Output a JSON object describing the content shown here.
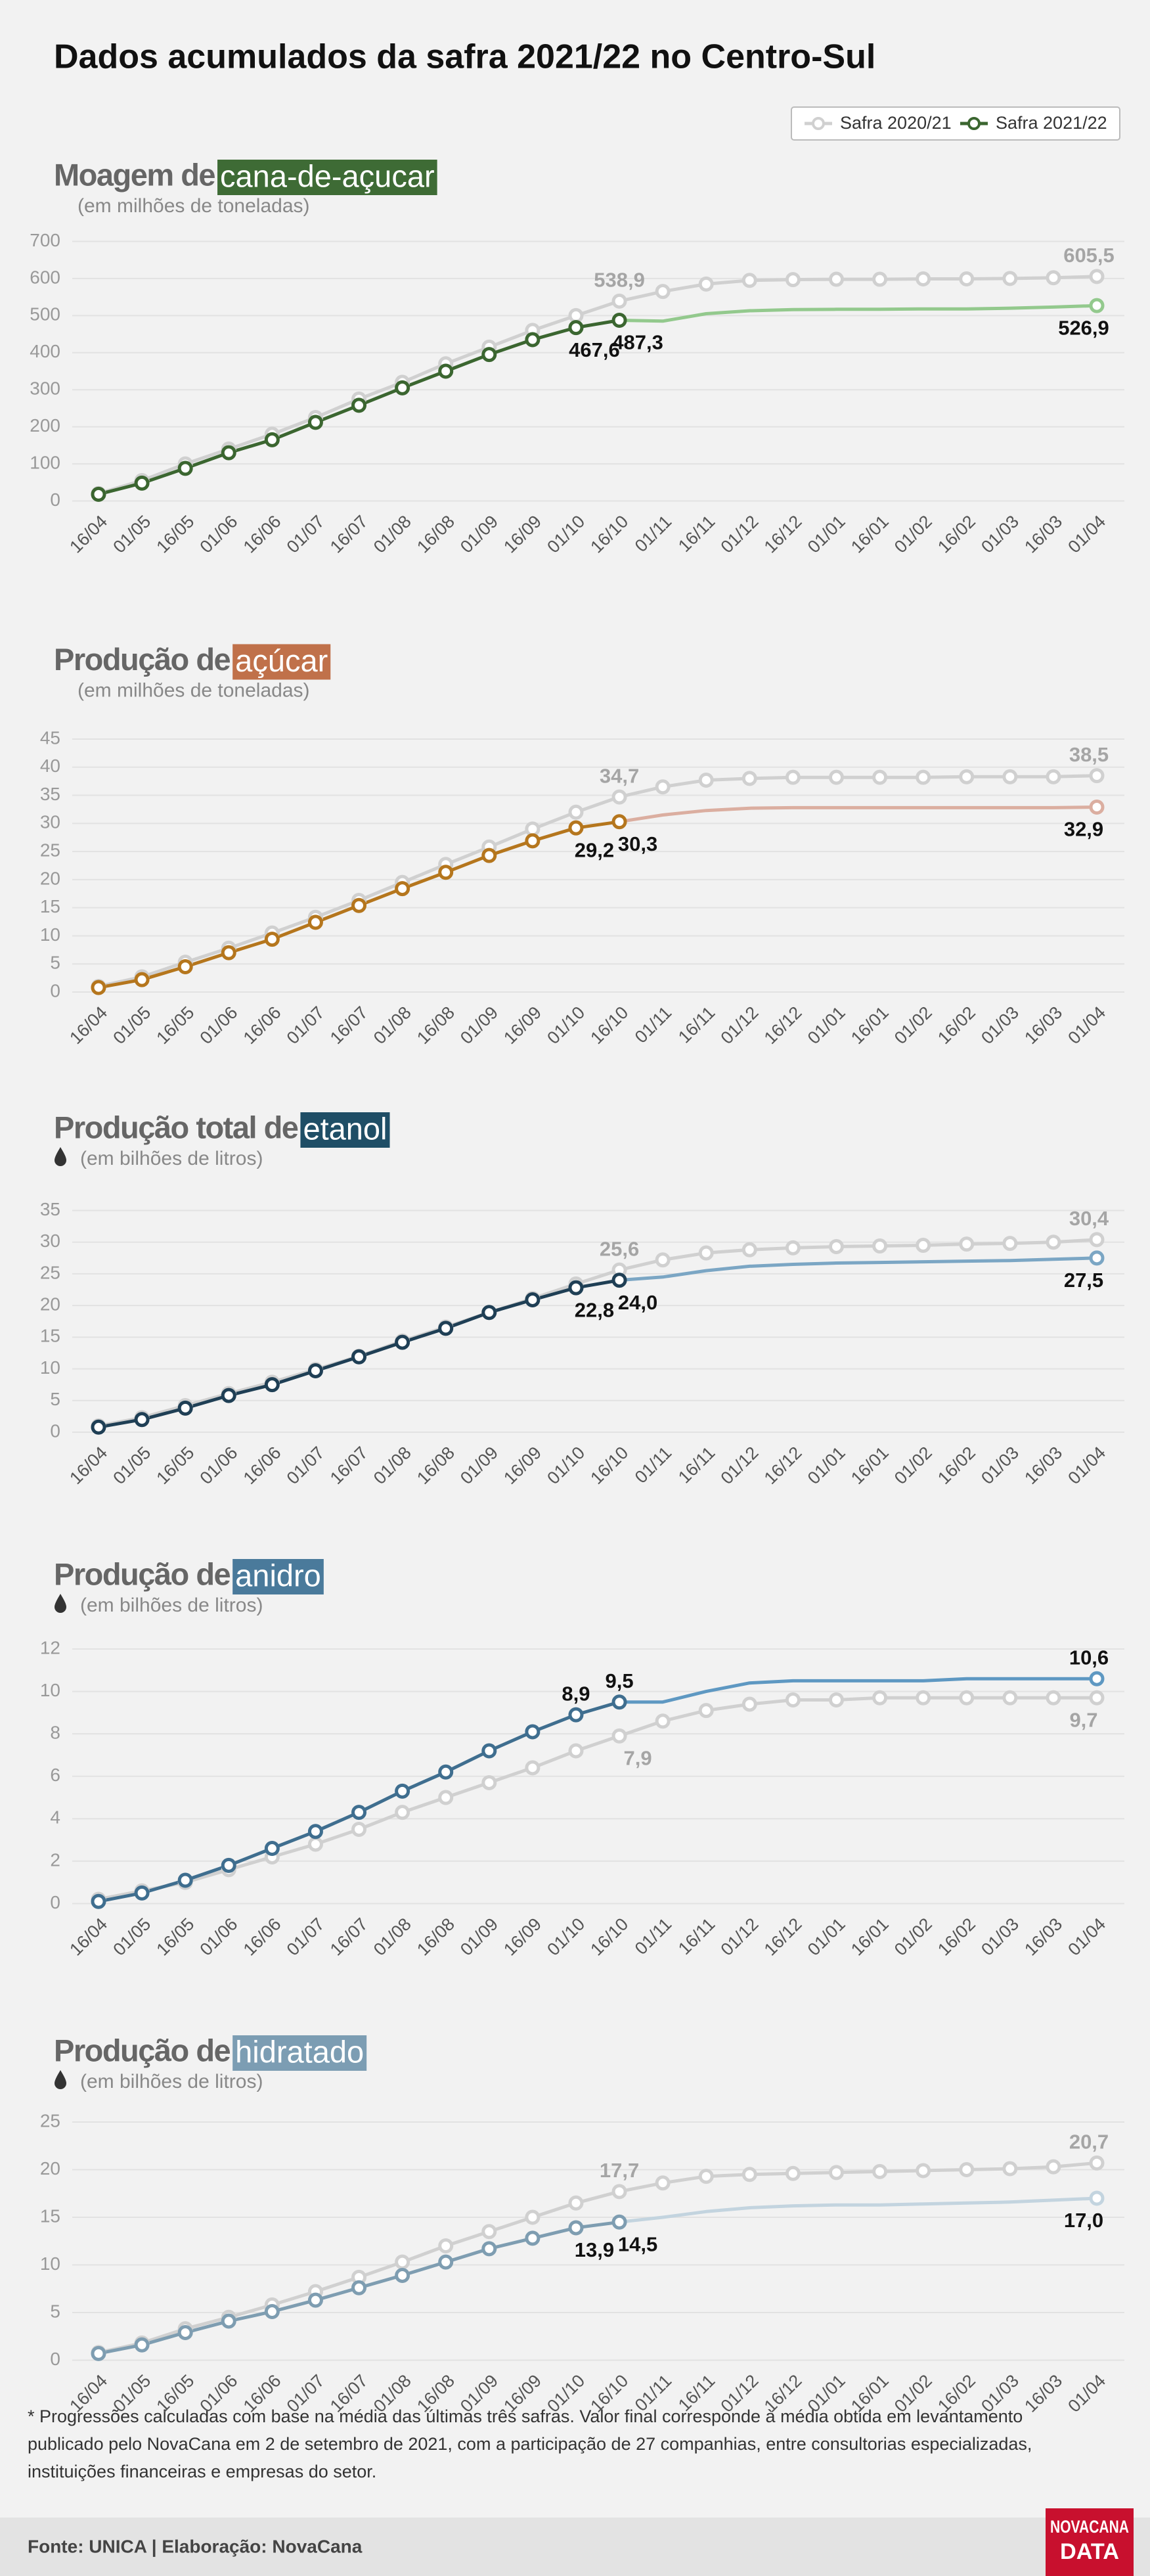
{
  "title": "Dados acumulados da safra 2021/22 no Centro-Sul",
  "footnote": [
    "* Progressões calculadas com base na média das últimas três safras. Valor final corresponde à média obtida em levantamento",
    "publicado pelo NovaCana em  2 de setembro de 2021, com a participação de 27 companhias, entre consultorias especializadas,",
    "instituições financeiras e empresas do setor."
  ],
  "source": "Fonte: UNICA | Elaboração: NovaCana",
  "logo": [
    "NOVACANA",
    "DATA"
  ],
  "chart_data": [
    {
      "type": "line",
      "title_prefix": "Moagem de",
      "title_highlight": "cana-de-açucar",
      "highlight_color": "#3e6b35",
      "subtitle": "(em milhões de toneladas)",
      "categories": [
        "16/04",
        "01/05",
        "16/05",
        "01/06",
        "16/06",
        "01/07",
        "16/07",
        "01/08",
        "16/08",
        "01/09",
        "16/09",
        "01/10",
        "16/10",
        "01/11",
        "16/11",
        "01/12",
        "16/12",
        "01/01",
        "16/01",
        "01/02",
        "16/02",
        "01/03",
        "16/03",
        "01/04"
      ],
      "ylim": [
        0,
        700
      ],
      "yticks": [
        0,
        100,
        200,
        300,
        400,
        500,
        600,
        700
      ],
      "grid": true,
      "series": [
        {
          "name": "Safra 2020/21",
          "color": "#d0d0d0",
          "values": [
            20,
            55,
            100,
            140,
            180,
            225,
            275,
            320,
            370,
            415,
            460,
            500,
            538.9,
            565,
            585,
            595,
            597,
            598,
            598,
            599,
            599,
            600,
            602,
            605.5
          ],
          "value_labels": [
            null,
            null,
            null,
            null,
            null,
            null,
            null,
            null,
            null,
            null,
            null,
            null,
            "538,9",
            null,
            null,
            null,
            null,
            null,
            null,
            null,
            null,
            null,
            null,
            "605,5"
          ]
        },
        {
          "name": "Safra 2021/22",
          "color": "#3b6630",
          "values": [
            18,
            48,
            88,
            130,
            165,
            212,
            258,
            305,
            350,
            395,
            435,
            467.6,
            487.3,
            null,
            null,
            null,
            null,
            null,
            null,
            null,
            null,
            null,
            null,
            null
          ],
          "value_labels": [
            null,
            null,
            null,
            null,
            null,
            null,
            null,
            null,
            null,
            null,
            null,
            "467,6",
            "487,3",
            null,
            null,
            null,
            null,
            null,
            null,
            null,
            null,
            null,
            null,
            null
          ]
        }
      ],
      "projection": {
        "color": "#93c98d",
        "values": [
          null,
          null,
          null,
          null,
          null,
          null,
          null,
          null,
          null,
          null,
          null,
          null,
          487.3,
          485,
          505,
          513,
          516,
          517,
          517,
          518,
          518,
          520,
          523,
          526.9
        ],
        "value_labels": [
          null,
          null,
          null,
          null,
          null,
          null,
          null,
          null,
          null,
          null,
          null,
          null,
          null,
          null,
          null,
          null,
          null,
          null,
          null,
          null,
          null,
          null,
          null,
          "526,9"
        ]
      }
    },
    {
      "type": "line",
      "title_prefix": "Produção de",
      "title_highlight": "açúcar",
      "highlight_color": "#c0714a",
      "subtitle": "(em milhões de toneladas)",
      "categories": [
        "16/04",
        "01/05",
        "16/05",
        "01/06",
        "16/06",
        "01/07",
        "16/07",
        "01/08",
        "16/08",
        "01/09",
        "16/09",
        "01/10",
        "16/10",
        "01/11",
        "16/11",
        "01/12",
        "16/12",
        "01/01",
        "16/01",
        "01/02",
        "16/02",
        "01/03",
        "16/03",
        "01/04"
      ],
      "ylim": [
        0,
        45
      ],
      "yticks": [
        0,
        5,
        10,
        15,
        20,
        25,
        30,
        35,
        40,
        45
      ],
      "grid": true,
      "series": [
        {
          "color": "#d0d0d0",
          "values": [
            1,
            2.7,
            5.3,
            7.8,
            10.5,
            13.3,
            16.3,
            19.5,
            22.7,
            25.8,
            29,
            32,
            34.7,
            36.5,
            37.7,
            38,
            38.2,
            38.2,
            38.2,
            38.2,
            38.3,
            38.3,
            38.3,
            38.5
          ],
          "value_labels": [
            null,
            null,
            null,
            null,
            null,
            null,
            null,
            null,
            null,
            null,
            null,
            null,
            "34,7",
            null,
            null,
            null,
            null,
            null,
            null,
            null,
            null,
            null,
            null,
            "38,5"
          ]
        },
        {
          "color": "#b5761d",
          "values": [
            0.8,
            2.2,
            4.5,
            7,
            9.4,
            12.4,
            15.4,
            18.4,
            21.3,
            24.3,
            26.9,
            29.2,
            30.3,
            null,
            null,
            null,
            null,
            null,
            null,
            null,
            null,
            null,
            null,
            null
          ],
          "value_labels": [
            null,
            null,
            null,
            null,
            null,
            null,
            null,
            null,
            null,
            null,
            null,
            "29,2",
            "30,3",
            null,
            null,
            null,
            null,
            null,
            null,
            null,
            null,
            null,
            null,
            null
          ]
        }
      ],
      "projection": {
        "color": "#dbaea0",
        "values": [
          null,
          null,
          null,
          null,
          null,
          null,
          null,
          null,
          null,
          null,
          null,
          null,
          30.3,
          31.5,
          32.3,
          32.7,
          32.8,
          32.8,
          32.8,
          32.8,
          32.8,
          32.8,
          32.8,
          32.9
        ],
        "value_labels": [
          null,
          null,
          null,
          null,
          null,
          null,
          null,
          null,
          null,
          null,
          null,
          null,
          null,
          null,
          null,
          null,
          null,
          null,
          null,
          null,
          null,
          null,
          null,
          "32,9"
        ]
      }
    },
    {
      "type": "line",
      "title_prefix": "Produção total de",
      "title_highlight": "etanol",
      "highlight_color": "#1f4e66",
      "subtitle": "(em bilhões de litros)",
      "unit_icon": "drop",
      "categories": [
        "16/04",
        "01/05",
        "16/05",
        "01/06",
        "16/06",
        "01/07",
        "16/07",
        "01/08",
        "16/08",
        "01/09",
        "16/09",
        "01/10",
        "16/10",
        "01/11",
        "16/11",
        "01/12",
        "16/12",
        "01/01",
        "16/01",
        "01/02",
        "16/02",
        "01/03",
        "16/03",
        "01/04"
      ],
      "ylim": [
        0,
        35
      ],
      "yticks": [
        0,
        5,
        10,
        15,
        20,
        25,
        30,
        35
      ],
      "grid": true,
      "series": [
        {
          "color": "#d0d0d0",
          "values": [
            1,
            2.3,
            4.2,
            6.1,
            7.9,
            9.9,
            12,
            14.4,
            16.6,
            18.9,
            21.1,
            23.4,
            25.6,
            27.2,
            28.3,
            28.8,
            29.1,
            29.3,
            29.4,
            29.5,
            29.7,
            29.8,
            30,
            30.4
          ],
          "value_labels": [
            null,
            null,
            null,
            null,
            null,
            null,
            null,
            null,
            null,
            null,
            null,
            null,
            "25,6",
            null,
            null,
            null,
            null,
            null,
            null,
            null,
            null,
            null,
            null,
            "30,4"
          ]
        },
        {
          "color": "#1f3f55",
          "values": [
            0.8,
            2,
            3.8,
            5.8,
            7.5,
            9.7,
            11.9,
            14.2,
            16.4,
            18.9,
            20.9,
            22.8,
            24,
            null,
            null,
            null,
            null,
            null,
            null,
            null,
            null,
            null,
            null,
            null
          ],
          "value_labels": [
            null,
            null,
            null,
            null,
            null,
            null,
            null,
            null,
            null,
            null,
            null,
            "22,8",
            "24,0",
            null,
            null,
            null,
            null,
            null,
            null,
            null,
            null,
            null,
            null,
            null
          ]
        }
      ],
      "projection": {
        "color": "#7ba6c4",
        "values": [
          null,
          null,
          null,
          null,
          null,
          null,
          null,
          null,
          null,
          null,
          null,
          null,
          24,
          24.5,
          25.5,
          26.2,
          26.5,
          26.7,
          26.8,
          26.9,
          27,
          27.1,
          27.3,
          27.5
        ],
        "value_labels": [
          null,
          null,
          null,
          null,
          null,
          null,
          null,
          null,
          null,
          null,
          null,
          null,
          null,
          null,
          null,
          null,
          null,
          null,
          null,
          null,
          null,
          null,
          null,
          "27,5"
        ]
      }
    },
    {
      "type": "line",
      "title_prefix": "Produção de",
      "title_highlight": "anidro",
      "highlight_color": "#4a7a9b",
      "subtitle": "(em bilhões de litros)",
      "unit_icon": "drop",
      "categories": [
        "16/04",
        "01/05",
        "16/05",
        "01/06",
        "16/06",
        "01/07",
        "16/07",
        "01/08",
        "16/08",
        "01/09",
        "16/09",
        "01/10",
        "16/10",
        "01/11",
        "16/11",
        "01/12",
        "16/12",
        "01/01",
        "16/01",
        "01/02",
        "16/02",
        "01/03",
        "16/03",
        "01/04"
      ],
      "ylim": [
        0,
        12
      ],
      "yticks": [
        0,
        2,
        4,
        6,
        8,
        10,
        12
      ],
      "grid": true,
      "series": [
        {
          "color": "#d0d0d0",
          "values": [
            0.2,
            0.6,
            1,
            1.6,
            2.2,
            2.8,
            3.5,
            4.3,
            5,
            5.7,
            6.4,
            7.2,
            7.9,
            8.6,
            9.1,
            9.4,
            9.6,
            9.6,
            9.7,
            9.7,
            9.7,
            9.7,
            9.7,
            9.7
          ],
          "value_labels": [
            null,
            null,
            null,
            null,
            null,
            null,
            null,
            null,
            null,
            null,
            null,
            null,
            "7,9",
            null,
            null,
            null,
            null,
            null,
            null,
            null,
            null,
            null,
            null,
            "9,7"
          ]
        },
        {
          "color": "#3f6e8f",
          "values": [
            0.1,
            0.5,
            1.1,
            1.8,
            2.6,
            3.4,
            4.3,
            5.3,
            6.2,
            7.2,
            8.1,
            8.9,
            9.5,
            null,
            null,
            null,
            null,
            null,
            null,
            null,
            null,
            null,
            null,
            null
          ],
          "value_labels": [
            null,
            null,
            null,
            null,
            null,
            null,
            null,
            null,
            null,
            null,
            null,
            "8,9",
            "9,5",
            null,
            null,
            null,
            null,
            null,
            null,
            null,
            null,
            null,
            null,
            null
          ]
        }
      ],
      "projection": {
        "color": "#5e98c2",
        "values": [
          null,
          null,
          null,
          null,
          null,
          null,
          null,
          null,
          null,
          null,
          null,
          null,
          9.5,
          9.5,
          10,
          10.4,
          10.5,
          10.5,
          10.5,
          10.5,
          10.6,
          10.6,
          10.6,
          10.6
        ],
        "value_labels": [
          null,
          null,
          null,
          null,
          null,
          null,
          null,
          null,
          null,
          null,
          null,
          null,
          null,
          null,
          null,
          null,
          null,
          null,
          null,
          null,
          null,
          null,
          null,
          "10,6"
        ]
      }
    },
    {
      "type": "line",
      "title_prefix": "Produção de",
      "title_highlight": "hidratado",
      "highlight_color": "#7c9db3",
      "subtitle": "(em bilhões de litros)",
      "unit_icon": "drop",
      "categories": [
        "16/04",
        "01/05",
        "16/05",
        "01/06",
        "16/06",
        "01/07",
        "16/07",
        "01/08",
        "16/08",
        "01/09",
        "16/09",
        "01/10",
        "16/10",
        "01/11",
        "16/11",
        "01/12",
        "16/12",
        "01/01",
        "16/01",
        "01/02",
        "16/02",
        "01/03",
        "16/03",
        "01/04"
      ],
      "ylim": [
        0,
        25
      ],
      "yticks": [
        0,
        5,
        10,
        15,
        20,
        25
      ],
      "grid": true,
      "series": [
        {
          "color": "#d0d0d0",
          "values": [
            0.8,
            1.8,
            3.3,
            4.5,
            5.8,
            7.2,
            8.7,
            10.3,
            12,
            13.5,
            15,
            16.5,
            17.7,
            18.6,
            19.3,
            19.5,
            19.6,
            19.7,
            19.8,
            19.9,
            20,
            20.1,
            20.3,
            20.7
          ],
          "value_labels": [
            null,
            null,
            null,
            null,
            null,
            null,
            null,
            null,
            null,
            null,
            null,
            null,
            "17,7",
            null,
            null,
            null,
            null,
            null,
            null,
            null,
            null,
            null,
            null,
            "20,7"
          ]
        },
        {
          "color": "#7e9db1",
          "values": [
            0.7,
            1.6,
            2.9,
            4.1,
            5.1,
            6.3,
            7.6,
            8.9,
            10.3,
            11.7,
            12.8,
            13.9,
            14.5,
            null,
            null,
            null,
            null,
            null,
            null,
            null,
            null,
            null,
            null,
            null
          ],
          "value_labels": [
            null,
            null,
            null,
            null,
            null,
            null,
            null,
            null,
            null,
            null,
            null,
            "13,9",
            "14,5",
            null,
            null,
            null,
            null,
            null,
            null,
            null,
            null,
            null,
            null,
            null
          ]
        }
      ],
      "projection": {
        "color": "#c3d4df",
        "values": [
          null,
          null,
          null,
          null,
          null,
          null,
          null,
          null,
          null,
          null,
          null,
          null,
          14.5,
          15,
          15.6,
          16,
          16.2,
          16.3,
          16.3,
          16.4,
          16.5,
          16.6,
          16.8,
          17
        ],
        "value_labels": [
          null,
          null,
          null,
          null,
          null,
          null,
          null,
          null,
          null,
          null,
          null,
          null,
          null,
          null,
          null,
          null,
          null,
          null,
          null,
          null,
          null,
          null,
          null,
          "17,0"
        ]
      }
    }
  ]
}
